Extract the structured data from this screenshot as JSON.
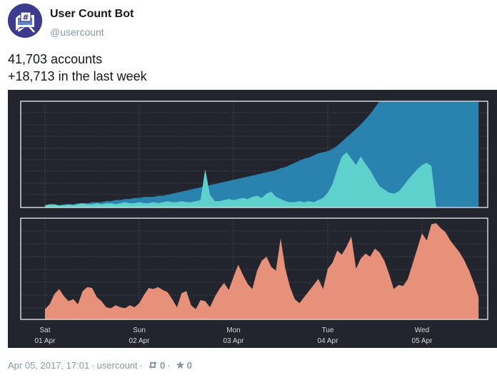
{
  "user": {
    "display_name": "User Count Bot",
    "handle": "@usercount"
  },
  "tweet": {
    "line1": "41,703 accounts",
    "line2": "+18,713 in the last week"
  },
  "footer": {
    "timestamp": "Apr 05, 2017, 17:01",
    "dot1": "·",
    "username": "usercount",
    "dot2": "·",
    "retweet_count": "0",
    "dot3": "·",
    "favorite_count": "0"
  },
  "colors": {
    "background": "#23252e",
    "area_dark": "#2a82ae",
    "area_light": "#5fd1cc",
    "area_bottom": "#e8917a",
    "frame": "#e6e6e6"
  },
  "chart_data": {
    "type": "area",
    "x_ticks": [
      {
        "day": "Sat",
        "date": "01 Apr"
      },
      {
        "day": "Sun",
        "date": "02 Apr"
      },
      {
        "day": "Mon",
        "date": "03 Apr"
      },
      {
        "day": "Tue",
        "date": "04 Apr"
      },
      {
        "day": "Wed",
        "date": "05 Apr"
      }
    ],
    "x": [
      0,
      0.05,
      0.1,
      0.15,
      0.2,
      0.25,
      0.3,
      0.35,
      0.4,
      0.45,
      0.5,
      0.55,
      0.6,
      0.65,
      0.7,
      0.75,
      0.8,
      0.85,
      0.9,
      0.95,
      1.0,
      1.05,
      1.1,
      1.15,
      1.2,
      1.25,
      1.3,
      1.35,
      1.4,
      1.45,
      1.5,
      1.55,
      1.6,
      1.65,
      1.7,
      1.75,
      1.8,
      1.85,
      1.9,
      1.95,
      2.0,
      2.05,
      2.1,
      2.15,
      2.2,
      2.25,
      2.3,
      2.35,
      2.4,
      2.45,
      2.5,
      2.55,
      2.6,
      2.65,
      2.7,
      2.75,
      2.8,
      2.85,
      2.9,
      2.95,
      3.0,
      3.05,
      3.1,
      3.15,
      3.2,
      3.25,
      3.3,
      3.35,
      3.4,
      3.45,
      3.5,
      3.55,
      3.6,
      3.65,
      3.7,
      3.75,
      3.8,
      3.85,
      3.9,
      3.95,
      4.0,
      4.05,
      4.1,
      4.15,
      4.2,
      4.25,
      4.3,
      4.35,
      4.4,
      4.45,
      4.5,
      4.55,
      4.6
    ],
    "series": [
      {
        "values": [
          0.02,
          0.02,
          0.02,
          0.02,
          0.03,
          0.03,
          0.03,
          0.04,
          0.04,
          0.04,
          0.05,
          0.05,
          0.05,
          0.06,
          0.06,
          0.07,
          0.07,
          0.08,
          0.08,
          0.09,
          0.09,
          0.1,
          0.1,
          0.1,
          0.11,
          0.11,
          0.12,
          0.13,
          0.14,
          0.15,
          0.16,
          0.17,
          0.18,
          0.19,
          0.2,
          0.21,
          0.22,
          0.23,
          0.24,
          0.25,
          0.26,
          0.27,
          0.28,
          0.29,
          0.3,
          0.31,
          0.32,
          0.33,
          0.34,
          0.35,
          0.37,
          0.38,
          0.4,
          0.42,
          0.44,
          0.46,
          0.47,
          0.49,
          0.51,
          0.52,
          0.53,
          0.55,
          0.58,
          0.62,
          0.66,
          0.7,
          0.74,
          0.78,
          0.83,
          0.88,
          0.94,
          1.0,
          1.0,
          1.0,
          1.0,
          1.0,
          1.0,
          1.0,
          1.0,
          1.0,
          1.0,
          1.0,
          1.0,
          1.0,
          1.0,
          1.0,
          1.0,
          1.0,
          1.0,
          1.0,
          1.0,
          1.0,
          1.0
        ]
      },
      {
        "values": [
          0.02,
          0.03,
          0.03,
          0.02,
          0.02,
          0.03,
          0.02,
          0.03,
          0.04,
          0.03,
          0.03,
          0.04,
          0.03,
          0.04,
          0.04,
          0.03,
          0.04,
          0.05,
          0.04,
          0.04,
          0.05,
          0.04,
          0.04,
          0.05,
          0.04,
          0.05,
          0.06,
          0.05,
          0.05,
          0.06,
          0.05,
          0.05,
          0.06,
          0.07,
          0.36,
          0.12,
          0.06,
          0.06,
          0.07,
          0.08,
          0.07,
          0.08,
          0.09,
          0.08,
          0.1,
          0.11,
          0.09,
          0.13,
          0.15,
          0.1,
          0.08,
          0.06,
          0.05,
          0.05,
          0.06,
          0.05,
          0.06,
          0.05,
          0.07,
          0.09,
          0.14,
          0.22,
          0.36,
          0.48,
          0.52,
          0.46,
          0.4,
          0.48,
          0.41,
          0.35,
          0.27,
          0.2,
          0.17,
          0.14,
          0.13,
          0.15,
          0.2,
          0.26,
          0.31,
          0.36,
          0.4,
          0.42,
          0.39,
          0.0,
          0.0,
          0.0,
          0.0,
          0.0,
          0.0,
          0.0,
          0.0,
          0.0,
          0.0
        ]
      },
      {
        "values": [
          0.1,
          0.15,
          0.25,
          0.3,
          0.23,
          0.18,
          0.2,
          0.15,
          0.28,
          0.32,
          0.31,
          0.22,
          0.18,
          0.12,
          0.11,
          0.14,
          0.12,
          0.11,
          0.14,
          0.12,
          0.16,
          0.24,
          0.31,
          0.3,
          0.32,
          0.29,
          0.27,
          0.2,
          0.12,
          0.26,
          0.28,
          0.14,
          0.1,
          0.19,
          0.18,
          0.12,
          0.22,
          0.3,
          0.36,
          0.29,
          0.42,
          0.54,
          0.44,
          0.35,
          0.3,
          0.48,
          0.58,
          0.62,
          0.52,
          0.48,
          0.8,
          0.5,
          0.32,
          0.2,
          0.16,
          0.22,
          0.28,
          0.34,
          0.4,
          0.3,
          0.5,
          0.56,
          0.68,
          0.64,
          0.72,
          0.82,
          0.5,
          0.6,
          0.65,
          0.62,
          0.7,
          0.66,
          0.58,
          0.45,
          0.3,
          0.34,
          0.33,
          0.4,
          0.55,
          0.7,
          0.85,
          0.78,
          0.94,
          0.95,
          0.9,
          0.86,
          0.78,
          0.72,
          0.66,
          0.58,
          0.48,
          0.36,
          0.22
        ]
      }
    ]
  }
}
